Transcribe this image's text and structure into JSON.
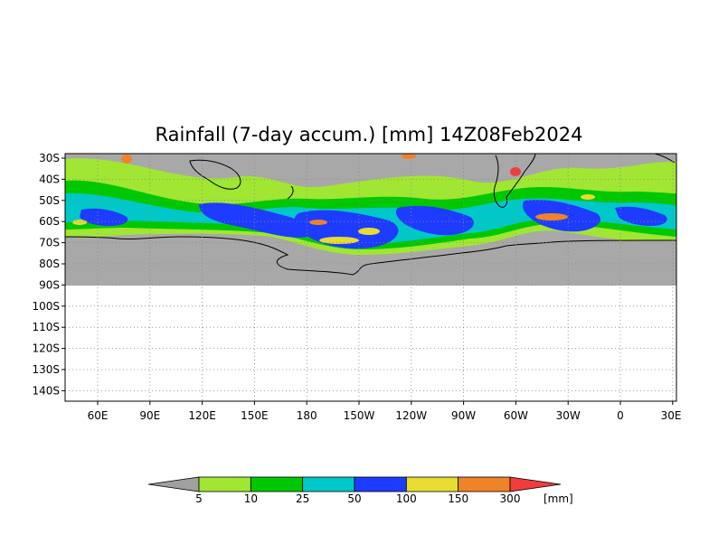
{
  "title": "Rainfall (7-day accum.) [mm] 14Z08Feb2024",
  "map": {
    "lat_ticks": [
      "30S",
      "40S",
      "50S",
      "60S",
      "70S",
      "80S",
      "90S",
      "100S",
      "110S",
      "120S",
      "130S",
      "140S"
    ],
    "lon_ticks": [
      "60E",
      "90E",
      "120E",
      "150E",
      "180",
      "150W",
      "120W",
      "90W",
      "60W",
      "30W",
      "0",
      "30E"
    ],
    "land_color": "#a8a8a8",
    "background_color": "#ffffff",
    "grid": "dotted"
  },
  "colorbar": {
    "unit": "[mm]",
    "labels": [
      "5",
      "10",
      "25",
      "50",
      "100",
      "150",
      "300"
    ],
    "colors": [
      "#a0a0a0",
      "#a0e632",
      "#00c800",
      "#00c8c8",
      "#1e3cff",
      "#e6dc32",
      "#f08228",
      "#f03c3c"
    ]
  }
}
